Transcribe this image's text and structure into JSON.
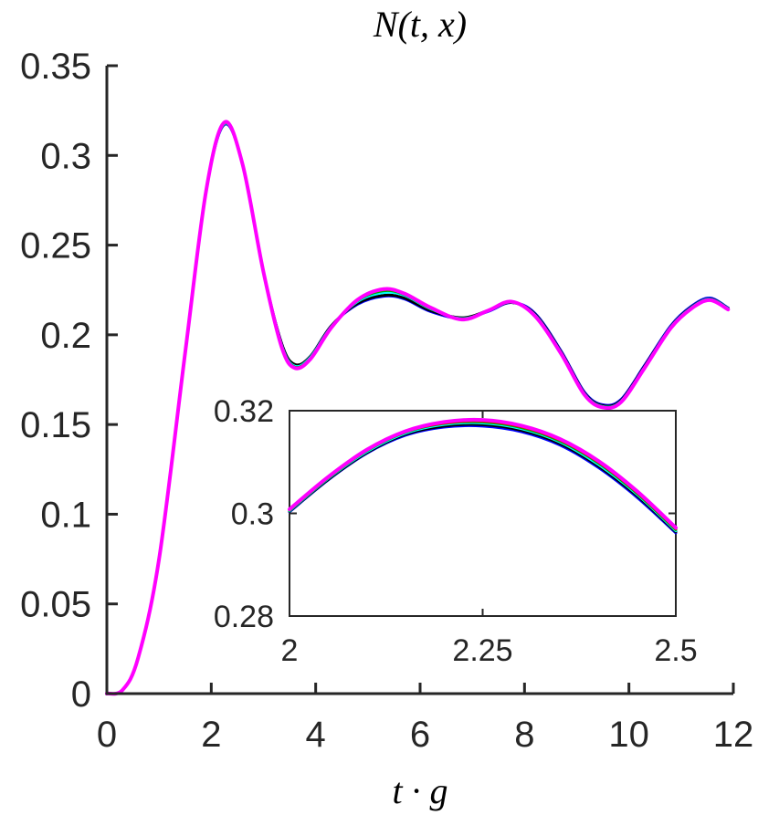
{
  "chart_data": [
    {
      "type": "line",
      "title": "N(t, x)",
      "xlabel": "t · g",
      "ylabel": "",
      "xlim": [
        0,
        12
      ],
      "ylim": [
        0,
        0.35
      ],
      "xticks": [
        "0",
        "2",
        "4",
        "6",
        "8",
        "10",
        "12"
      ],
      "yticks": [
        "0",
        "0.05",
        "0.1",
        "0.15",
        "0.2",
        "0.25",
        "0.3",
        "0.35"
      ],
      "grid": false,
      "series": [
        {
          "color": "#0000ff",
          "x": [
            0,
            0.3,
            0.6,
            1.0,
            1.5,
            1.9,
            2.25,
            2.6,
            3.0,
            3.35,
            3.6,
            3.9,
            4.3,
            4.8,
            5.3,
            5.7,
            6.2,
            6.8,
            7.3,
            7.75,
            8.2,
            8.7,
            9.15,
            9.5,
            9.85,
            10.3,
            10.8,
            11.2,
            11.55,
            11.9
          ],
          "y": [
            0,
            0.002,
            0.02,
            0.075,
            0.19,
            0.28,
            0.3172,
            0.295,
            0.235,
            0.195,
            0.183,
            0.188,
            0.205,
            0.217,
            0.2215,
            0.22,
            0.213,
            0.209,
            0.213,
            0.218,
            0.212,
            0.191,
            0.168,
            0.161,
            0.164,
            0.183,
            0.205,
            0.216,
            0.2205,
            0.215
          ]
        },
        {
          "color": "#000000",
          "x": [
            0,
            0.3,
            0.6,
            1.0,
            1.5,
            1.9,
            2.25,
            2.6,
            3.0,
            3.35,
            3.6,
            3.9,
            4.3,
            4.8,
            5.3,
            5.7,
            6.2,
            6.8,
            7.3,
            7.75,
            8.2,
            8.7,
            9.15,
            9.5,
            9.85,
            10.3,
            10.8,
            11.2,
            11.55,
            11.9
          ],
          "y": [
            0,
            0.002,
            0.02,
            0.075,
            0.19,
            0.28,
            0.3175,
            0.295,
            0.235,
            0.195,
            0.1835,
            0.188,
            0.205,
            0.2175,
            0.222,
            0.2205,
            0.2135,
            0.2095,
            0.2135,
            0.218,
            0.2115,
            0.1905,
            0.1675,
            0.1605,
            0.1635,
            0.1825,
            0.2045,
            0.2155,
            0.22,
            0.2148
          ]
        },
        {
          "color": "#00ffff",
          "x": [
            0,
            0.3,
            0.6,
            1.0,
            1.5,
            1.9,
            2.25,
            2.6,
            3.0,
            3.35,
            3.6,
            3.9,
            4.3,
            4.8,
            5.3,
            5.7,
            6.2,
            6.8,
            7.3,
            7.75,
            8.2,
            8.7,
            9.15,
            9.5,
            9.85,
            10.3,
            10.8,
            11.2,
            11.55,
            11.9
          ],
          "y": [
            0,
            0.002,
            0.02,
            0.075,
            0.19,
            0.28,
            0.3177,
            0.295,
            0.235,
            0.194,
            0.1825,
            0.1875,
            0.2045,
            0.2185,
            0.2235,
            0.222,
            0.2145,
            0.209,
            0.2135,
            0.2182,
            0.211,
            0.19,
            0.167,
            0.16,
            0.163,
            0.182,
            0.2042,
            0.2152,
            0.2198,
            0.2146
          ]
        },
        {
          "color": "#00aa00",
          "x": [
            0,
            0.3,
            0.6,
            1.0,
            1.5,
            1.9,
            2.25,
            2.6,
            3.0,
            3.35,
            3.6,
            3.9,
            4.3,
            4.8,
            5.3,
            5.7,
            6.2,
            6.8,
            7.3,
            7.75,
            8.2,
            8.7,
            9.15,
            9.5,
            9.85,
            10.3,
            10.8,
            11.2,
            11.55,
            11.9
          ],
          "y": [
            0,
            0.002,
            0.02,
            0.075,
            0.19,
            0.28,
            0.318,
            0.295,
            0.235,
            0.1935,
            0.182,
            0.187,
            0.2042,
            0.219,
            0.2245,
            0.2225,
            0.2148,
            0.2088,
            0.2135,
            0.2183,
            0.2108,
            0.1898,
            0.1668,
            0.1598,
            0.1628,
            0.1818,
            0.204,
            0.215,
            0.2196,
            0.2144
          ]
        },
        {
          "color": "#ff0000",
          "x": [
            0,
            0.3,
            0.6,
            1.0,
            1.5,
            1.9,
            2.25,
            2.6,
            3.0,
            3.35,
            3.6,
            3.9,
            4.3,
            4.8,
            5.3,
            5.7,
            6.2,
            6.8,
            7.3,
            7.75,
            8.2,
            8.7,
            9.15,
            9.5,
            9.85,
            10.3,
            10.8,
            11.2,
            11.55,
            11.9
          ],
          "y": [
            0,
            0.002,
            0.02,
            0.075,
            0.19,
            0.28,
            0.3182,
            0.295,
            0.235,
            0.1932,
            0.1818,
            0.1868,
            0.2041,
            0.2193,
            0.2252,
            0.2228,
            0.215,
            0.2087,
            0.2135,
            0.2184,
            0.2106,
            0.1896,
            0.1666,
            0.1596,
            0.1626,
            0.1816,
            0.2038,
            0.2148,
            0.2194,
            0.2142
          ]
        },
        {
          "color": "#ff00ff",
          "x": [
            0,
            0.3,
            0.6,
            1.0,
            1.5,
            1.9,
            2.25,
            2.6,
            3.0,
            3.35,
            3.6,
            3.9,
            4.3,
            4.8,
            5.3,
            5.7,
            6.2,
            6.8,
            7.3,
            7.75,
            8.2,
            8.7,
            9.15,
            9.5,
            9.85,
            10.3,
            10.8,
            11.2,
            11.55,
            11.9
          ],
          "y": [
            0,
            0.002,
            0.02,
            0.075,
            0.19,
            0.28,
            0.3184,
            0.295,
            0.235,
            0.193,
            0.1815,
            0.1865,
            0.204,
            0.2195,
            0.2255,
            0.223,
            0.2152,
            0.2085,
            0.2135,
            0.2185,
            0.2105,
            0.1895,
            0.1665,
            0.1595,
            0.1625,
            0.1815,
            0.2037,
            0.2147,
            0.2193,
            0.2141
          ]
        }
      ]
    },
    {
      "type": "line",
      "title": "",
      "xlabel": "",
      "ylabel": "",
      "xlim": [
        2,
        2.5
      ],
      "ylim": [
        0.28,
        0.32
      ],
      "xticks": [
        "2",
        "2.25",
        "2.5"
      ],
      "yticks": [
        "0.28",
        "0.3",
        "0.32"
      ],
      "grid": false,
      "series": [
        {
          "color": "#0000ff",
          "x": [
            2.0,
            2.05,
            2.1,
            2.15,
            2.2,
            2.25,
            2.3,
            2.35,
            2.4,
            2.45,
            2.5
          ],
          "y": [
            0.3003,
            0.3065,
            0.3117,
            0.3152,
            0.3168,
            0.317,
            0.3159,
            0.3133,
            0.3089,
            0.3031,
            0.2962
          ]
        },
        {
          "color": "#000000",
          "x": [
            2.0,
            2.05,
            2.1,
            2.15,
            2.2,
            2.25,
            2.3,
            2.35,
            2.4,
            2.45,
            2.5
          ],
          "y": [
            0.3004,
            0.3066,
            0.3118,
            0.3154,
            0.317,
            0.3173,
            0.3162,
            0.3136,
            0.3092,
            0.3034,
            0.2964
          ]
        },
        {
          "color": "#00ffff",
          "x": [
            2.0,
            2.05,
            2.1,
            2.15,
            2.2,
            2.25,
            2.3,
            2.35,
            2.4,
            2.45,
            2.5
          ],
          "y": [
            0.3005,
            0.3068,
            0.312,
            0.3156,
            0.3173,
            0.3176,
            0.3165,
            0.3139,
            0.3095,
            0.3037,
            0.2966
          ]
        },
        {
          "color": "#00aa00",
          "x": [
            2.0,
            2.05,
            2.1,
            2.15,
            2.2,
            2.25,
            2.3,
            2.35,
            2.4,
            2.45,
            2.5
          ],
          "y": [
            0.3006,
            0.3069,
            0.3122,
            0.3158,
            0.3175,
            0.3178,
            0.3167,
            0.3141,
            0.3098,
            0.3039,
            0.2968
          ]
        },
        {
          "color": "#ff0000",
          "x": [
            2.0,
            2.05,
            2.1,
            2.15,
            2.2,
            2.25,
            2.3,
            2.35,
            2.4,
            2.45,
            2.5
          ],
          "y": [
            0.3007,
            0.307,
            0.3123,
            0.3159,
            0.3176,
            0.318,
            0.3169,
            0.3143,
            0.31,
            0.3041,
            0.297
          ]
        },
        {
          "color": "#ff00ff",
          "x": [
            2.0,
            2.05,
            2.1,
            2.15,
            2.2,
            2.25,
            2.3,
            2.35,
            2.4,
            2.45,
            2.5
          ],
          "y": [
            0.3008,
            0.3071,
            0.3124,
            0.316,
            0.3178,
            0.3182,
            0.3171,
            0.3145,
            0.3102,
            0.3043,
            0.2972
          ]
        }
      ]
    }
  ]
}
